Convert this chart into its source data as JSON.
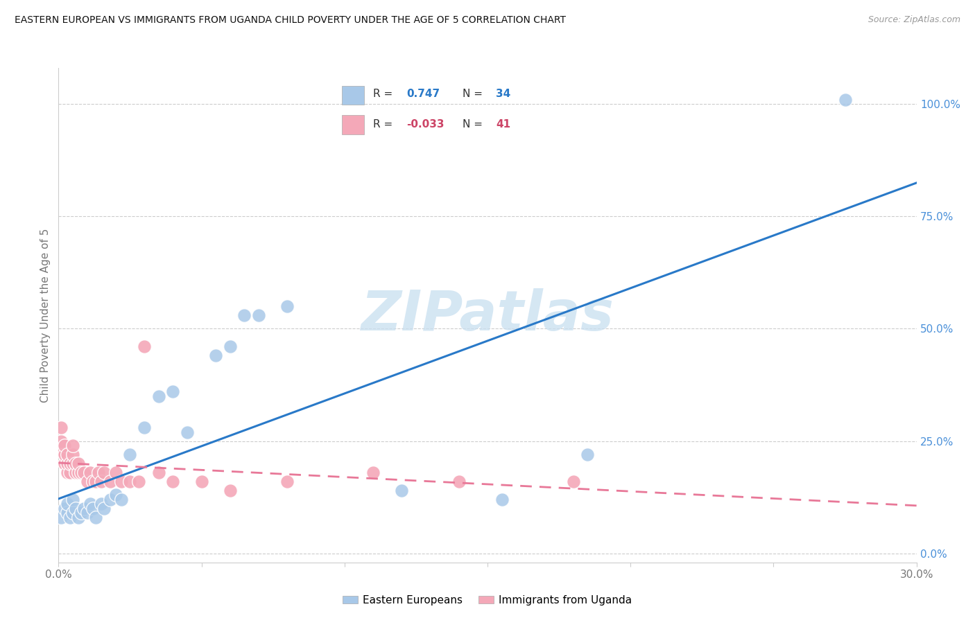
{
  "title": "EASTERN EUROPEAN VS IMMIGRANTS FROM UGANDA CHILD POVERTY UNDER THE AGE OF 5 CORRELATION CHART",
  "source": "Source: ZipAtlas.com",
  "ylabel": "Child Poverty Under the Age of 5",
  "xlim": [
    0.0,
    0.3
  ],
  "ylim": [
    -0.02,
    1.08
  ],
  "xticks": [
    0.0,
    0.05,
    0.1,
    0.15,
    0.2,
    0.25,
    0.3
  ],
  "xtick_labels": [
    "0.0%",
    "",
    "",
    "",
    "",
    "",
    "30.0%"
  ],
  "yticks_right": [
    0.0,
    0.25,
    0.5,
    0.75,
    1.0
  ],
  "ytick_labels_right": [
    "0.0%",
    "25.0%",
    "50.0%",
    "75.0%",
    "100.0%"
  ],
  "blue_color": "#a8c8e8",
  "pink_color": "#f4a8b8",
  "blue_line_color": "#2979c8",
  "pink_line_color": "#e87898",
  "watermark": "ZIPatlas",
  "ee_x": [
    0.001,
    0.002,
    0.003,
    0.003,
    0.004,
    0.005,
    0.005,
    0.006,
    0.007,
    0.008,
    0.009,
    0.01,
    0.011,
    0.012,
    0.013,
    0.015,
    0.016,
    0.018,
    0.02,
    0.022,
    0.025,
    0.03,
    0.035,
    0.04,
    0.045,
    0.055,
    0.06,
    0.065,
    0.07,
    0.08,
    0.12,
    0.155,
    0.185,
    0.275
  ],
  "ee_y": [
    0.08,
    0.1,
    0.09,
    0.11,
    0.08,
    0.09,
    0.12,
    0.1,
    0.08,
    0.09,
    0.1,
    0.09,
    0.11,
    0.1,
    0.08,
    0.11,
    0.1,
    0.12,
    0.13,
    0.12,
    0.22,
    0.28,
    0.35,
    0.36,
    0.27,
    0.44,
    0.46,
    0.53,
    0.53,
    0.55,
    0.14,
    0.12,
    0.22,
    1.01
  ],
  "ug_x": [
    0.001,
    0.001,
    0.001,
    0.002,
    0.002,
    0.002,
    0.003,
    0.003,
    0.003,
    0.004,
    0.004,
    0.005,
    0.005,
    0.005,
    0.006,
    0.006,
    0.007,
    0.007,
    0.008,
    0.009,
    0.01,
    0.011,
    0.012,
    0.013,
    0.014,
    0.015,
    0.016,
    0.018,
    0.02,
    0.022,
    0.025,
    0.028,
    0.03,
    0.035,
    0.04,
    0.05,
    0.06,
    0.08,
    0.11,
    0.14,
    0.18
  ],
  "ug_y": [
    0.23,
    0.25,
    0.28,
    0.2,
    0.22,
    0.24,
    0.18,
    0.2,
    0.22,
    0.18,
    0.2,
    0.2,
    0.22,
    0.24,
    0.18,
    0.2,
    0.18,
    0.2,
    0.18,
    0.18,
    0.16,
    0.18,
    0.16,
    0.16,
    0.18,
    0.16,
    0.18,
    0.16,
    0.18,
    0.16,
    0.16,
    0.16,
    0.46,
    0.18,
    0.16,
    0.16,
    0.14,
    0.16,
    0.18,
    0.16,
    0.16
  ],
  "r_ee": 0.747,
  "n_ee": 34,
  "r_ug": -0.033,
  "n_ug": 41
}
